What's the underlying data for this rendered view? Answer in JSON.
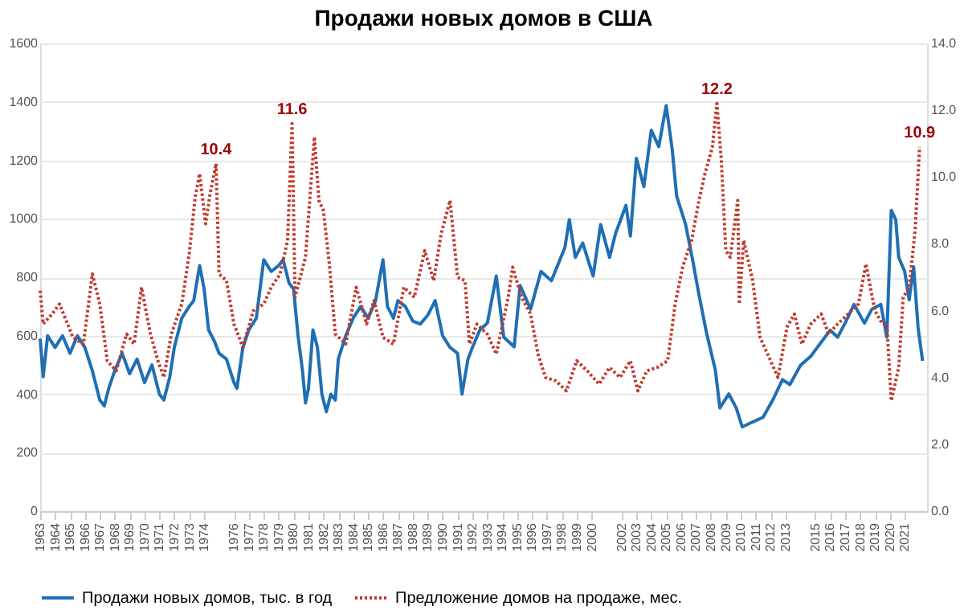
{
  "chart_data": {
    "type": "line",
    "title": "Продажи новых домов в США",
    "xlim": [
      1963,
      2022.5
    ],
    "xticks": [
      1963,
      1964,
      1965,
      1966,
      1967,
      1968,
      1969,
      1970,
      1971,
      1972,
      1973,
      1974,
      1976,
      1977,
      1978,
      1979,
      1980,
      1981,
      1982,
      1983,
      1984,
      1985,
      1986,
      1987,
      1988,
      1989,
      1990,
      1991,
      1992,
      1993,
      1994,
      1995,
      1996,
      1997,
      1998,
      1999,
      2000,
      2002,
      2003,
      2004,
      2005,
      2006,
      2007,
      2008,
      2009,
      2010,
      2011,
      2012,
      2013,
      2015,
      2016,
      2017,
      2018,
      2019,
      2020,
      2021
    ],
    "ylim": [
      0,
      1600
    ],
    "yticks": [
      0,
      200,
      400,
      600,
      800,
      1000,
      1200,
      1400,
      1600
    ],
    "y2lim": [
      0,
      14
    ],
    "y2ticks": [
      {
        "value": 0,
        "label": "0.0"
      },
      {
        "value": 2,
        "label": "2.0"
      },
      {
        "value": 4,
        "label": "4.0"
      },
      {
        "value": 6,
        "label": "6.0"
      },
      {
        "value": 8,
        "label": "8.0"
      },
      {
        "value": 10,
        "label": "10.0"
      },
      {
        "value": 12,
        "label": "12.0"
      },
      {
        "value": 14,
        "label": "14.0"
      }
    ],
    "grid": "y",
    "legend": "bottom",
    "marker": "none",
    "series": [
      {
        "name": "Продажи новых домов, тыс. в год",
        "color": "#1f6fb4",
        "line_style": "solid",
        "x": [
          1963.0,
          1963.2,
          1963.5,
          1964.0,
          1964.5,
          1965.0,
          1965.5,
          1966.0,
          1966.5,
          1967.0,
          1967.3,
          1967.6,
          1968.0,
          1968.5,
          1969.0,
          1969.5,
          1970.0,
          1970.5,
          1971.0,
          1971.3,
          1971.7,
          1972.0,
          1972.5,
          1973.0,
          1973.3,
          1973.7,
          1974.0,
          1974.3,
          1974.7,
          1975.0,
          1975.5,
          1976.0,
          1976.2,
          1976.6,
          1977.0,
          1977.5,
          1978.0,
          1978.5,
          1979.0,
          1979.3,
          1979.7,
          1980.0,
          1980.3,
          1980.6,
          1980.8,
          1981.0,
          1981.3,
          1981.6,
          1981.9,
          1982.2,
          1982.5,
          1982.8,
          1983.0,
          1983.5,
          1984.0,
          1984.5,
          1985.0,
          1985.5,
          1986.0,
          1986.3,
          1986.7,
          1987.0,
          1987.5,
          1988.0,
          1988.5,
          1989.0,
          1989.5,
          1990.0,
          1990.5,
          1991.0,
          1991.3,
          1991.7,
          1992.0,
          1992.5,
          1993.0,
          1993.6,
          1994.1,
          1994.8,
          1995.2,
          1995.9,
          1996.6,
          1997.3,
          1998.2,
          1998.5,
          1998.9,
          1999.4,
          2000.1,
          2000.6,
          2001.2,
          2001.6,
          2002.3,
          2002.6,
          2003.0,
          2003.5,
          2004.0,
          2004.5,
          2005.0,
          2005.4,
          2005.7,
          2006.3,
          2006.8,
          2007.2,
          2007.7,
          2008.3,
          2008.6,
          2009.2,
          2009.7,
          2010.1,
          2010.8,
          2011.5,
          2012.2,
          2012.8,
          2013.3,
          2014.0,
          2014.7,
          2015.4,
          2016.0,
          2016.5,
          2017.0,
          2017.6,
          2018.3,
          2018.8,
          2019.4,
          2019.8,
          2020.1,
          2020.4,
          2020.6,
          2021.0,
          2021.3,
          2021.6,
          2021.9,
          2022.2
        ],
        "values": [
          590,
          460,
          600,
          560,
          600,
          540,
          600,
          560,
          480,
          380,
          360,
          420,
          480,
          540,
          470,
          520,
          440,
          500,
          400,
          380,
          460,
          560,
          660,
          700,
          720,
          840,
          760,
          620,
          580,
          540,
          520,
          440,
          420,
          560,
          620,
          660,
          860,
          820,
          840,
          860,
          780,
          760,
          600,
          480,
          370,
          420,
          620,
          560,
          400,
          340,
          400,
          380,
          520,
          600,
          660,
          700,
          660,
          720,
          860,
          700,
          660,
          720,
          700,
          650,
          640,
          670,
          720,
          600,
          560,
          540,
          400,
          520,
          560,
          620,
          643,
          804,
          595,
          562,
          772,
          691,
          820,
          788,
          901,
          997,
          868,
          917,
          804,
          981,
          868,
          949,
          1046,
          941,
          1207,
          1110,
          1303,
          1247,
          1387,
          1239,
          1078,
          981,
          852,
          740,
          611,
          482,
          353,
          401,
          353,
          288,
          305,
          321,
          385,
          450,
          433,
          498,
          530,
          578,
          619,
          595,
          643,
          707,
          643,
          691,
          707,
          595,
          1029,
          997,
          868,
          820,
          723,
          836,
          627,
          514
        ]
      },
      {
        "name": "Предложение домов на продаже, мес.",
        "color": "#c0392b",
        "line_style": "dotted",
        "axis": "y2",
        "x": [
          1963.0,
          1963.2,
          1963.8,
          1964.3,
          1965.2,
          1965.9,
          1966.5,
          1967.0,
          1967.5,
          1968.1,
          1968.8,
          1969.3,
          1969.8,
          1970.4,
          1970.9,
          1971.3,
          1971.8,
          1972.5,
          1973.0,
          1973.4,
          1973.7,
          1974.1,
          1974.4,
          1974.8,
          1975.0,
          1975.5,
          1976.0,
          1976.6,
          1977.3,
          1978.0,
          1978.5,
          1979.1,
          1979.6,
          1979.9,
          1980.1,
          1980.8,
          1981.4,
          1981.7,
          1982.0,
          1982.4,
          1982.8,
          1983.5,
          1984.2,
          1984.9,
          1985.4,
          1986.0,
          1986.7,
          1987.4,
          1988.1,
          1988.8,
          1989.4,
          1989.9,
          1990.5,
          1991.0,
          1991.5,
          1991.8,
          1992.3,
          1993.0,
          1993.6,
          1994.4,
          1994.7,
          1995.3,
          1995.9,
          1996.4,
          1996.9,
          1997.6,
          1998.3,
          1999.0,
          1999.7,
          2000.5,
          2001.2,
          2001.9,
          2002.6,
          2003.1,
          2003.7,
          2004.4,
          2005.1,
          2005.6,
          2006.1,
          2006.7,
          2007.2,
          2007.6,
          2008.1,
          2008.4,
          2008.7,
          2009.0,
          2009.3,
          2009.8,
          2009.9,
          2010.2,
          2010.8,
          2011.3,
          2012.0,
          2012.5,
          2013.1,
          2013.6,
          2014.1,
          2014.7,
          2015.4,
          2015.9,
          2016.5,
          2017.2,
          2017.9,
          2018.4,
          2019.0,
          2019.5,
          2019.8,
          2020.1,
          2020.6,
          2020.9,
          2021.3,
          2021.7,
          2022.0
        ],
        "values": [
          6.6,
          5.6,
          5.9,
          6.2,
          5.2,
          5.0,
          7.1,
          6.2,
          4.5,
          4.2,
          5.3,
          5.0,
          6.7,
          5.3,
          4.5,
          4.0,
          5.3,
          6.2,
          7.7,
          9.4,
          10.1,
          8.6,
          9.5,
          10.4,
          7.1,
          6.9,
          5.6,
          4.9,
          6.0,
          6.2,
          6.7,
          7.1,
          8.1,
          11.6,
          6.4,
          7.6,
          11.2,
          9.3,
          9.0,
          7.4,
          5.3,
          5.0,
          6.7,
          5.6,
          6.3,
          5.2,
          5.0,
          6.7,
          6.4,
          7.8,
          6.9,
          8.3,
          9.3,
          7.0,
          6.9,
          5.0,
          5.6,
          5.3,
          4.7,
          6.4,
          7.3,
          6.4,
          5.9,
          4.7,
          4.0,
          3.9,
          3.6,
          4.5,
          4.2,
          3.8,
          4.3,
          4.0,
          4.5,
          3.6,
          4.2,
          4.3,
          4.5,
          6.2,
          7.3,
          8.1,
          9.3,
          10.1,
          10.9,
          12.2,
          10.5,
          7.8,
          7.6,
          9.3,
          6.2,
          8.1,
          6.9,
          5.2,
          4.5,
          4.0,
          5.5,
          5.9,
          5.0,
          5.6,
          5.9,
          5.3,
          5.6,
          5.9,
          6.2,
          7.4,
          6.0,
          5.6,
          5.6,
          3.3,
          4.3,
          6.4,
          6.7,
          8.4,
          10.9
        ]
      }
    ],
    "annotations": [
      {
        "text": "10.4",
        "x": 1974.8,
        "y": 1189
      },
      {
        "text": "11.6",
        "x": 1979.9,
        "y": 1326
      },
      {
        "text": "12.2",
        "x": 2008.4,
        "y": 1394
      },
      {
        "text": "10.9",
        "x": 2022.0,
        "y": 1246
      }
    ]
  }
}
